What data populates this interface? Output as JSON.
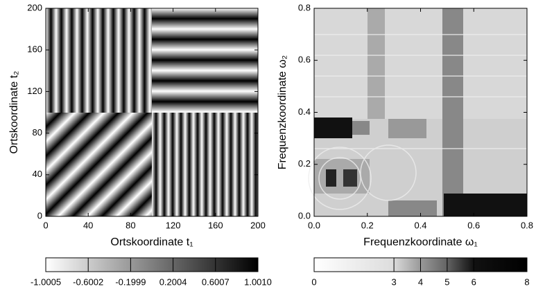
{
  "chart_data": [
    {
      "type": "heatmap",
      "xlabel": "Ortskoordinate t₁",
      "ylabel": "Ortskoordinate t₂",
      "xlim": [
        0,
        200
      ],
      "xticks": [
        0,
        40,
        80,
        120,
        160,
        200
      ],
      "ylim": [
        0,
        200
      ],
      "yticks": [
        0,
        40,
        80,
        120,
        160,
        200
      ],
      "colorbar": {
        "lim": [
          -1.0005,
          1.001
        ],
        "ticks": [
          -1.0005,
          -0.6002,
          -0.1999,
          0.2004,
          0.6007,
          {
            "value": 1.001,
            "label": "1.0010"
          }
        ]
      }
    },
    {
      "type": "heatmap",
      "xlabel": "Frequenzkoordinate ω₁",
      "ylabel": "Frequenzkoordinate ω₂",
      "xlim": [
        0,
        0.8
      ],
      "xticks": [
        {
          "value": 0,
          "label": "0.0"
        },
        0.2,
        0.4,
        0.6,
        0.8
      ],
      "ylim": [
        0,
        0.8
      ],
      "yticks": [
        {
          "value": 0,
          "label": "0.0"
        },
        0.2,
        0.4,
        0.6,
        0.8
      ],
      "colorbar": {
        "lim": [
          0,
          8
        ],
        "ticks": [
          0,
          3,
          4,
          5,
          6,
          8
        ]
      }
    }
  ]
}
